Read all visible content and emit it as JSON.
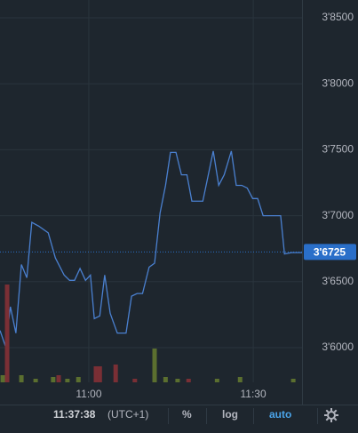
{
  "chart_data": [
    {
      "type": "line",
      "x": [
        643.8,
        644.8,
        645.7,
        646.7,
        647.7,
        648.7,
        649.6,
        650.9,
        652.6,
        653.9,
        655.5,
        656.5,
        657.4,
        658.4,
        659.4,
        660.3,
        661.0,
        662.0,
        662.9,
        663.9,
        665.2,
        666.8,
        667.8,
        668.8,
        669.8,
        671.0,
        672.0,
        673.0,
        674.0,
        674.9,
        675.9,
        676.9,
        677.9,
        678.8,
        679.8,
        680.8,
        681.7,
        682.7,
        683.7,
        684.7,
        686.0,
        686.9,
        687.9,
        688.9,
        689.9,
        690.8,
        691.8,
        692.8,
        694.1,
        695.0,
        695.7,
        697.0,
        698.9
      ],
      "series": [
        {
          "color": "#4a80d0",
          "values": [
            3.613,
            3.601,
            3.631,
            3.611,
            3.663,
            3.653,
            3.695,
            3.692,
            3.687,
            3.668,
            3.655,
            3.651,
            3.651,
            3.66,
            3.651,
            3.655,
            3.622,
            3.624,
            3.655,
            3.626,
            3.611,
            3.611,
            3.639,
            3.641,
            3.641,
            3.661,
            3.664,
            3.702,
            3.723,
            3.748,
            3.748,
            3.731,
            3.731,
            3.711,
            3.711,
            3.711,
            3.729,
            3.749,
            3.723,
            3.731,
            3.749,
            3.723,
            3.723,
            3.721,
            3.713,
            3.713,
            3.7,
            3.7,
            3.7,
            3.7,
            3.671,
            3.672,
            3.672
          ]
        }
      ],
      "xlim": [
        643.8,
        698.9
      ],
      "xticks": [
        {
          "value": 660,
          "label": "11:00"
        },
        {
          "value": 690,
          "label": "11:30"
        }
      ],
      "ylim": [
        3.5737,
        3.8635
      ],
      "yticks": [
        {
          "value": 3.6,
          "label": "3'6000"
        },
        {
          "value": 3.65,
          "label": "3'6500"
        },
        {
          "value": 3.7,
          "label": "3'7000"
        },
        {
          "value": 3.75,
          "label": "3'7500"
        },
        {
          "value": 3.8,
          "label": "3'8000"
        },
        {
          "value": 3.85,
          "label": "3'8500"
        }
      ],
      "grid": true,
      "last_price": {
        "value": 3.6725,
        "label": "3'6725",
        "color": "#2a6fc9"
      },
      "toolbar": {
        "time": "11:37:38",
        "timezone": "(UTC+1)",
        "percent": "%",
        "log": "log",
        "auto": "auto",
        "active_color": "#4aa3e8"
      }
    },
    {
      "type": "bar",
      "x": [
        644.3,
        645.1,
        647.7,
        650.3,
        653.5,
        654.5,
        656.1,
        658.1,
        661.3,
        662.0,
        664.9,
        668.4,
        672.0,
        674.0,
        676.2,
        678.2,
        683.4,
        687.6,
        697.3
      ],
      "values": [
        8,
        110,
        8,
        4,
        6,
        8,
        4,
        6,
        18,
        18,
        20,
        4,
        38,
        6,
        4,
        4,
        4,
        6,
        4
      ],
      "colors": [
        "#5b6f2f",
        "#7a2f35",
        "#5b6f2f",
        "#5b6f2f",
        "#5b6f2f",
        "#7a2f35",
        "#5b6f2f",
        "#5b6f2f",
        "#7a2f35",
        "#7a2f35",
        "#7a2f35",
        "#7a2f35",
        "#5b6f2f",
        "#5b6f2f",
        "#5b6f2f",
        "#7a2f35",
        "#5b6f2f",
        "#5b6f2f",
        "#5b6f2f"
      ],
      "xlim": [
        643.8,
        698.9
      ],
      "ylim": [
        0,
        430
      ]
    }
  ]
}
